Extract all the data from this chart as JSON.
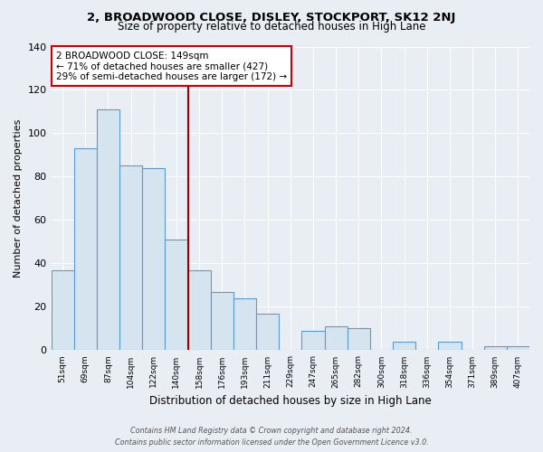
{
  "title": "2, BROADWOOD CLOSE, DISLEY, STOCKPORT, SK12 2NJ",
  "subtitle": "Size of property relative to detached houses in High Lane",
  "xlabel": "Distribution of detached houses by size in High Lane",
  "ylabel": "Number of detached properties",
  "bar_labels": [
    "51sqm",
    "69sqm",
    "87sqm",
    "104sqm",
    "122sqm",
    "140sqm",
    "158sqm",
    "176sqm",
    "193sqm",
    "211sqm",
    "229sqm",
    "247sqm",
    "265sqm",
    "282sqm",
    "300sqm",
    "318sqm",
    "336sqm",
    "354sqm",
    "371sqm",
    "389sqm",
    "407sqm"
  ],
  "bar_values": [
    37,
    93,
    111,
    85,
    84,
    51,
    37,
    27,
    24,
    17,
    0,
    9,
    11,
    10,
    0,
    4,
    0,
    4,
    0,
    2,
    2
  ],
  "bar_color": "#d6e4f0",
  "bar_edge_color": "#5b9bd5",
  "annotation_title": "2 BROADWOOD CLOSE: 149sqm",
  "annotation_line1": "← 71% of detached houses are smaller (427)",
  "annotation_line2": "29% of semi-detached houses are larger (172) →",
  "annotation_box_color": "#ffffff",
  "annotation_box_edge": "#cc0000",
  "marker_color": "#990000",
  "ylim": [
    0,
    140
  ],
  "yticks": [
    0,
    20,
    40,
    60,
    80,
    100,
    120,
    140
  ],
  "footer1": "Contains HM Land Registry data © Crown copyright and database right 2024.",
  "footer2": "Contains public sector information licensed under the Open Government Licence v3.0.",
  "bg_color": "#e8eef4"
}
